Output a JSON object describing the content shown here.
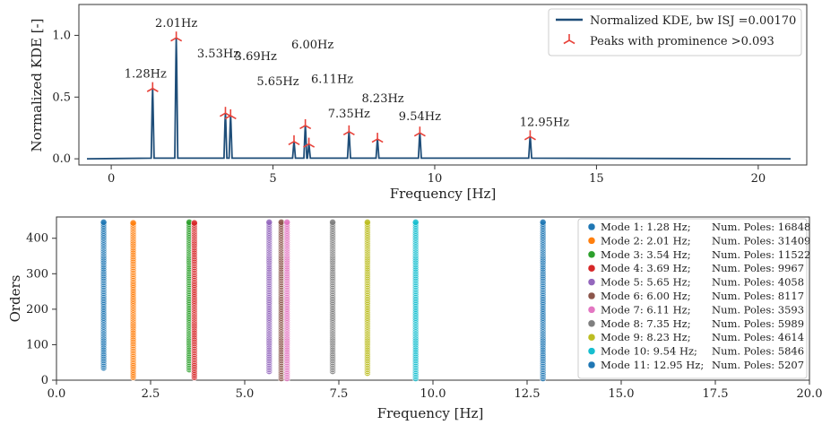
{
  "colors": {
    "kde_line": "#1f4e79",
    "peak_marker": "#e8423a",
    "palette": [
      "#1f77b4",
      "#ff7f0e",
      "#2ca02c",
      "#d62728",
      "#9467bd",
      "#8c564b",
      "#e377c2",
      "#7f7f7f",
      "#bcbd22",
      "#17becf",
      "#1f77b4"
    ]
  },
  "chart_data": [
    {
      "type": "line",
      "xlabel": "Frequency [Hz]",
      "ylabel": "Normalized KDE [-]",
      "xlim": [
        -1.0,
        21.5
      ],
      "ylim": [
        -0.05,
        1.25
      ],
      "xticks": [
        0,
        5,
        10,
        15,
        20
      ],
      "yticks": [
        0.0,
        0.5,
        1.0
      ],
      "xtick_labels": [
        "0",
        "5",
        "10",
        "15",
        "20"
      ],
      "ytick_labels": [
        "0.0",
        "0.5",
        "1.0"
      ],
      "grid": false,
      "legend_position": "top-right",
      "series": [
        {
          "name": "Normalized KDE, bw ISJ =0.00170"
        },
        {
          "name": "Peaks with prominence >0.093"
        }
      ],
      "x_range": [
        -0.75,
        21.0
      ],
      "peaks": [
        {
          "x": 1.28,
          "y": 0.57,
          "label": "1.28Hz"
        },
        {
          "x": 2.01,
          "y": 0.98,
          "label": "2.01Hz"
        },
        {
          "x": 3.53,
          "y": 0.37,
          "label": "3.53Hz"
        },
        {
          "x": 3.69,
          "y": 0.35,
          "label": "3.69Hz"
        },
        {
          "x": 5.65,
          "y": 0.14,
          "label": "5.65Hz"
        },
        {
          "x": 6.0,
          "y": 0.27,
          "label": "6.00Hz"
        },
        {
          "x": 6.11,
          "y": 0.12,
          "label": "6.11Hz"
        },
        {
          "x": 7.35,
          "y": 0.22,
          "label": "7.35Hz"
        },
        {
          "x": 8.23,
          "y": 0.16,
          "label": "8.23Hz"
        },
        {
          "x": 9.54,
          "y": 0.21,
          "label": "9.54Hz"
        },
        {
          "x": 12.95,
          "y": 0.18,
          "label": "12.95Hz"
        }
      ]
    },
    {
      "type": "scatter",
      "xlabel": "Frequency [Hz]",
      "ylabel": "Orders",
      "xlim": [
        0.0,
        20.0
      ],
      "ylim": [
        0,
        460
      ],
      "xticks": [
        0.0,
        2.5,
        5.0,
        7.5,
        10.0,
        12.5,
        15.0,
        17.5,
        20.0
      ],
      "yticks": [
        0,
        100,
        200,
        300,
        400
      ],
      "xtick_labels": [
        "0.0",
        "2.5",
        "5.0",
        "7.5",
        "10.0",
        "12.5",
        "15.0",
        "17.5",
        "20.0"
      ],
      "ytick_labels": [
        "0",
        "100",
        "200",
        "300",
        "400"
      ],
      "grid": false,
      "legend_position": "right",
      "series": [
        {
          "name": "Mode 1: 1.28 Hz;",
          "poles": "Num. Poles: 16848",
          "x": 1.28,
          "y_range": [
            35,
            445
          ]
        },
        {
          "name": "Mode 2: 2.01 Hz;",
          "poles": "Num. Poles: 31409",
          "x": 2.01,
          "y_range": [
            8,
            445
          ]
        },
        {
          "name": "Mode 3: 3.54 Hz;",
          "poles": "Num. Poles: 11522",
          "x": 3.54,
          "y_range": [
            30,
            445
          ]
        },
        {
          "name": "Mode 4: 3.69 Hz;",
          "poles": "Num. Poles: 9967",
          "x": 3.69,
          "y_range": [
            8,
            445
          ]
        },
        {
          "name": "Mode 5: 5.65 Hz;",
          "poles": "Num. Poles: 4058",
          "x": 5.65,
          "y_range": [
            25,
            445
          ]
        },
        {
          "name": "Mode 6: 6.00 Hz;",
          "poles": "Num. Poles: 8117",
          "x": 6.0,
          "y_range": [
            5,
            445
          ]
        },
        {
          "name": "Mode 7: 6.11 Hz;",
          "poles": "Num. Poles: 3593",
          "x": 6.11,
          "y_range": [
            5,
            445
          ]
        },
        {
          "name": "Mode 8: 7.35 Hz;",
          "poles": "Num. Poles: 5989",
          "x": 7.35,
          "y_range": [
            25,
            445
          ]
        },
        {
          "name": "Mode 9: 8.23 Hz;",
          "poles": "Num. Poles: 4614",
          "x": 8.23,
          "y_range": [
            20,
            445
          ]
        },
        {
          "name": "Mode 10: 9.54 Hz;",
          "poles": "Num. Poles: 5846",
          "x": 9.54,
          "y_range": [
            5,
            445
          ]
        },
        {
          "name": "Mode 11: 12.95 Hz;",
          "poles": "Num. Poles: 5207",
          "x": 12.95,
          "y_range": [
            5,
            445
          ]
        }
      ]
    }
  ]
}
